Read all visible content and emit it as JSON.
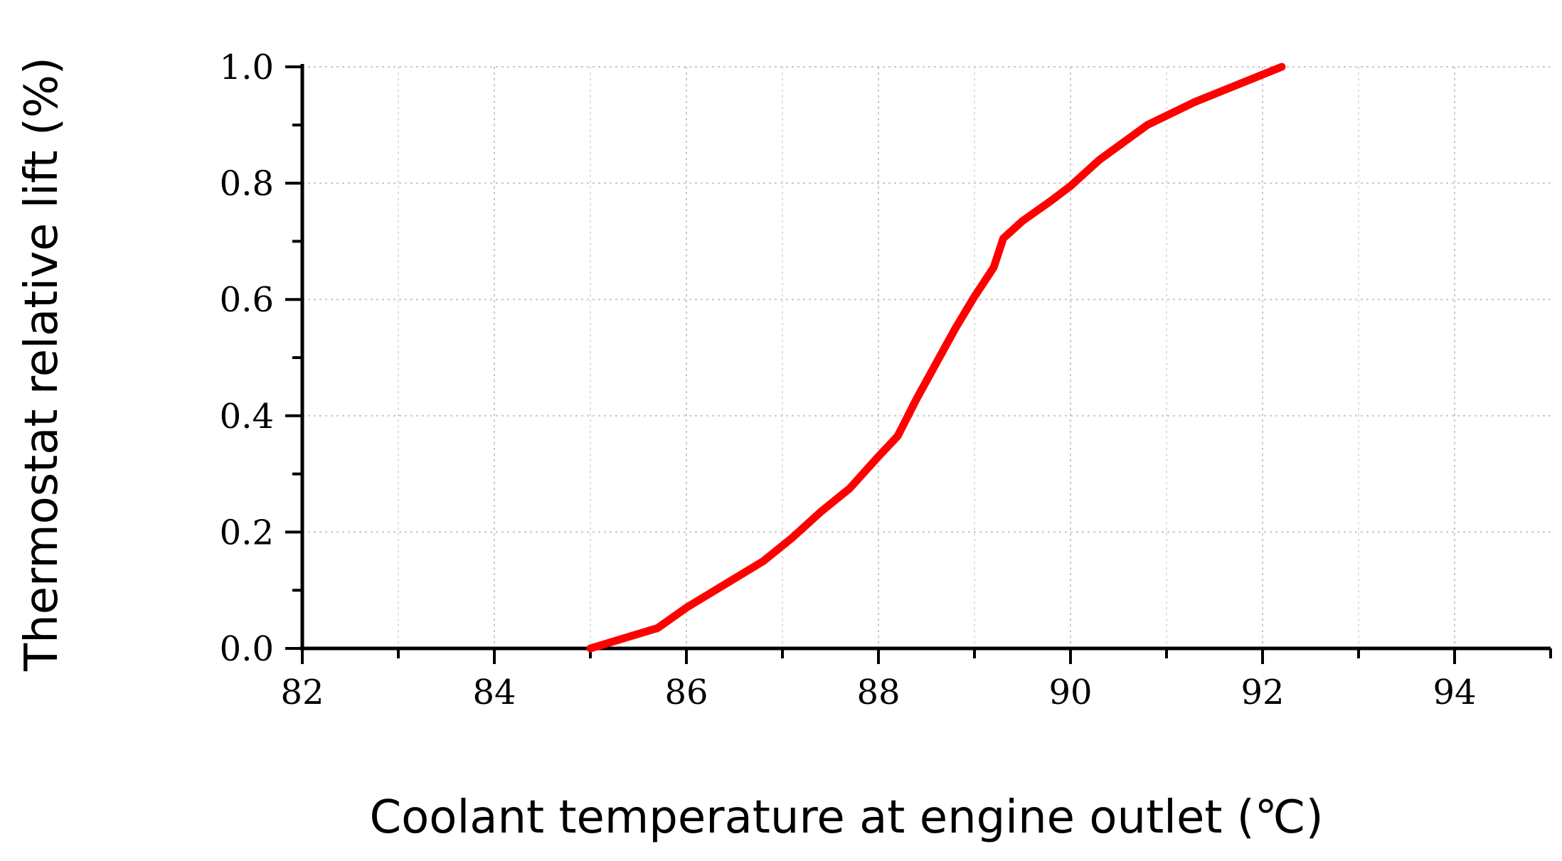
{
  "chart_data": {
    "type": "line",
    "title": "",
    "xlabel": "Coolant temperature at engine outlet (℃)",
    "ylabel": "Thermostat relative lift (%)",
    "xlim": [
      82,
      95
    ],
    "ylim": [
      0,
      1.0
    ],
    "x_ticks": [
      82,
      84,
      86,
      88,
      90,
      92,
      94
    ],
    "x_tick_labels": [
      "82",
      "84",
      "86",
      "88",
      "90",
      "92",
      "94"
    ],
    "y_ticks": [
      0.0,
      0.2,
      0.4,
      0.6,
      0.8,
      1.0
    ],
    "y_tick_labels": [
      "0.0",
      "0.2",
      "0.4",
      "0.6",
      "0.8",
      "1.0"
    ],
    "grid": true,
    "grid_style": "dotted",
    "series": [
      {
        "color": "#ff0000",
        "x": [
          85.0,
          85.4,
          85.7,
          86.0,
          86.4,
          86.8,
          87.1,
          87.4,
          87.7,
          88.0,
          88.2,
          88.4,
          88.6,
          88.8,
          89.0,
          89.2,
          89.3,
          89.5,
          89.8,
          90.0,
          90.3,
          90.8,
          91.3,
          92.2
        ],
        "y": [
          0.0,
          0.02,
          0.035,
          0.07,
          0.11,
          0.15,
          0.19,
          0.235,
          0.275,
          0.33,
          0.365,
          0.43,
          0.49,
          0.55,
          0.605,
          0.655,
          0.705,
          0.735,
          0.77,
          0.795,
          0.84,
          0.9,
          0.94,
          1.0
        ]
      }
    ]
  }
}
